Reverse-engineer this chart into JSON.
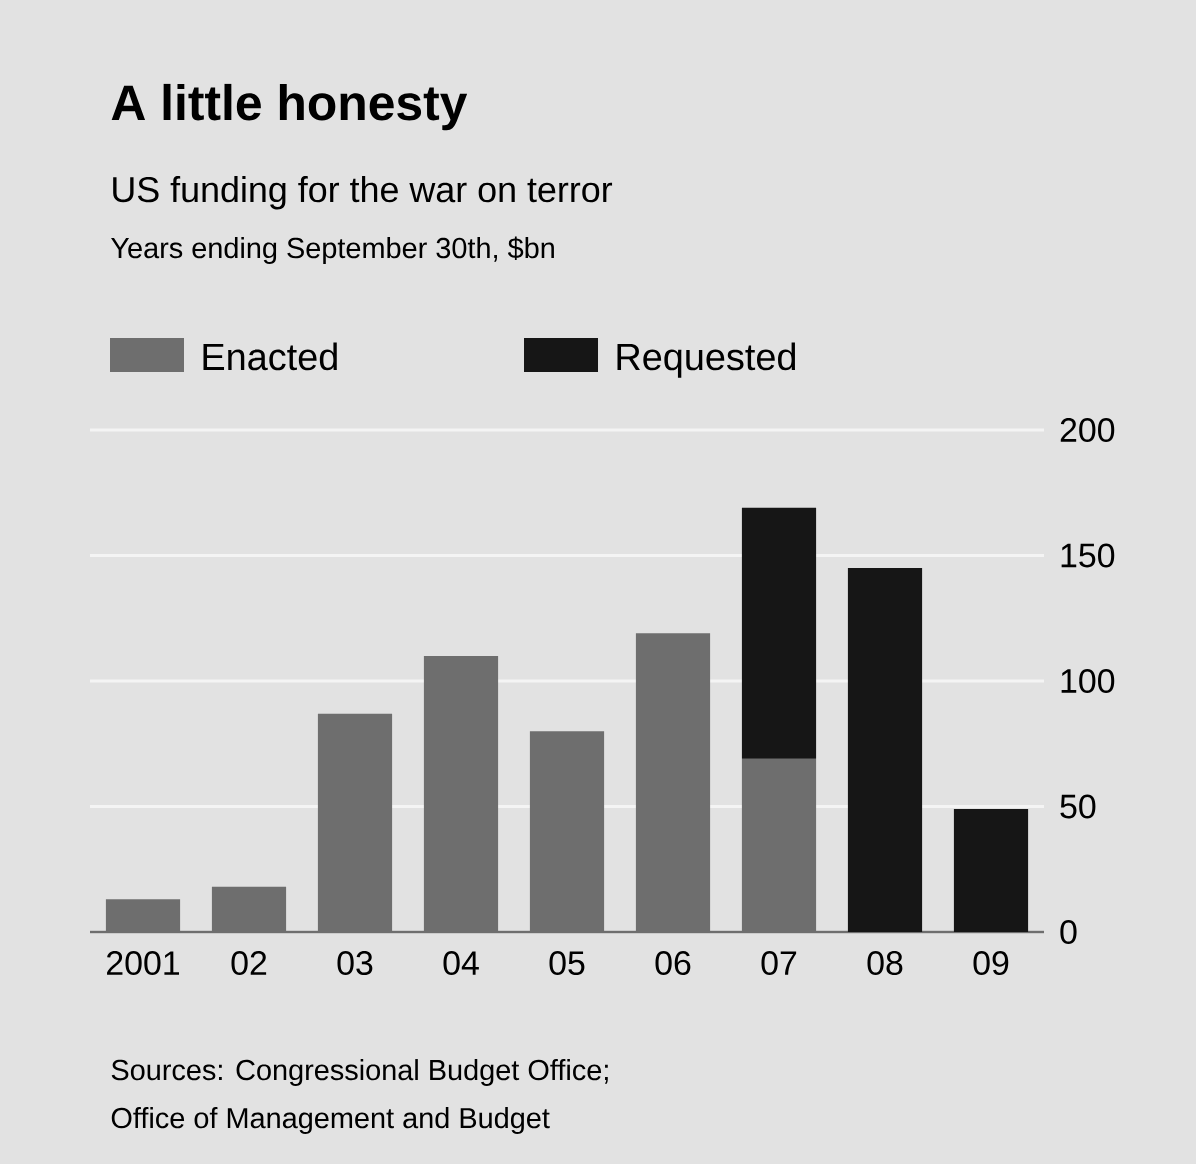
{
  "chart_data": {
    "type": "bar",
    "title": "A little honesty",
    "subtitle": "US funding for the war on terror",
    "categories": [
      "2001",
      "02",
      "03",
      "04",
      "05",
      "06",
      "07",
      "08",
      "09"
    ],
    "series": [
      {
        "name": "Enacted",
        "color": "#6e6e6e",
        "values": [
          13,
          18,
          87,
          110,
          80,
          119,
          69,
          null,
          null
        ]
      },
      {
        "name": "Requested",
        "color": "#161616",
        "values": [
          null,
          null,
          null,
          null,
          null,
          null,
          100,
          145,
          49
        ]
      }
    ],
    "stacked": true,
    "ylim": [
      0,
      200
    ],
    "yticks": [
      0,
      50,
      100,
      150,
      200
    ],
    "grid": "y",
    "legend": "top left",
    "annotations": [
      "Years ending September 30th, $bn",
      "Sources: Congressional Budget Office;",
      "Office of Management and Budget"
    ]
  }
}
